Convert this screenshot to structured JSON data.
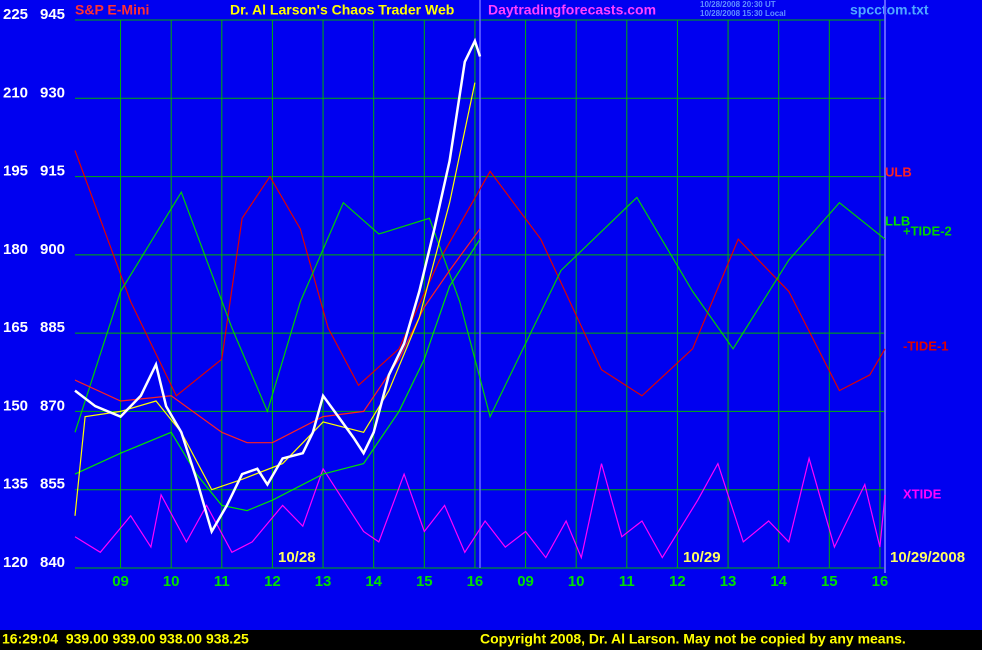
{
  "chart_data": {
    "type": "line",
    "title": "Dr. Al Larson's Chaos Trader Web",
    "instrument": "S&P E-Mini",
    "site": "Daytradingforecasts.com",
    "timestamps": [
      "10/28/2008 20:30 UT",
      "10/28/2008 15:30 Local"
    ],
    "file": "spcctom.txt",
    "dates": [
      "10/28",
      "10/29",
      "10/29/2008"
    ],
    "status": "16:29:04  939.00 939.00 938.00 938.25",
    "copyright": "Copyright 2008, Dr. Al Larson. May not be copied by any means.",
    "grid": true,
    "xlim": [
      0.1,
      16.1
    ],
    "xticks": [
      {
        "value": 1,
        "label": "09"
      },
      {
        "value": 2,
        "label": "10"
      },
      {
        "value": 3,
        "label": "11"
      },
      {
        "value": 4,
        "label": "12"
      },
      {
        "value": 5,
        "label": "13"
      },
      {
        "value": 6,
        "label": "14"
      },
      {
        "value": 7,
        "label": "15"
      },
      {
        "value": 8,
        "label": "16"
      },
      {
        "value": 9,
        "label": "09"
      },
      {
        "value": 10,
        "label": "10"
      },
      {
        "value": 11,
        "label": "11"
      },
      {
        "value": 12,
        "label": "12"
      },
      {
        "value": 13,
        "label": "13"
      },
      {
        "value": 14,
        "label": "14"
      },
      {
        "value": 15,
        "label": "15"
      },
      {
        "value": 16,
        "label": "16"
      }
    ],
    "ylim": [
      840,
      945
    ],
    "yticks": [
      840,
      855,
      870,
      885,
      900,
      915,
      930,
      945
    ],
    "y2lim": [
      120,
      225
    ],
    "y2ticks": [
      120,
      135,
      150,
      165,
      180,
      195,
      210,
      225
    ],
    "series": [
      {
        "name": "-TIDE-1",
        "color": "#e00000",
        "x": [
          0.1,
          1.2,
          2.1,
          3.0,
          3.4,
          3.95,
          4.55,
          5.1,
          5.7,
          6.5,
          7.3,
          8.3,
          9.3,
          10.5,
          11.3,
          12.3,
          13.2,
          14.2,
          15.2,
          15.8,
          16.1
        ],
        "values": [
          920,
          891,
          873,
          880,
          907,
          915,
          905,
          886,
          875,
          882,
          899,
          916,
          903,
          878,
          873,
          882,
          903,
          893,
          874,
          877,
          882
        ]
      },
      {
        "name": "+TIDE-2",
        "color": "#00d000",
        "x": [
          0.1,
          1.0,
          2.2,
          3.2,
          3.9,
          4.55,
          5.4,
          6.1,
          7.1,
          7.7,
          8.3,
          9.7,
          11.2,
          12.3,
          13.1,
          14.2,
          15.2,
          16.1
        ],
        "values": [
          866,
          893,
          912,
          886,
          870,
          891,
          910,
          904,
          907,
          891,
          869,
          897,
          911,
          893,
          882,
          899,
          910,
          903
        ]
      },
      {
        "name": "XTIDE",
        "color": "#ff00ff",
        "x": [
          0.1,
          0.6,
          1.2,
          1.6,
          1.8,
          2.3,
          2.7,
          3.2,
          3.6,
          4.2,
          4.6,
          5.0,
          5.4,
          5.8,
          6.1,
          6.6,
          7.0,
          7.4,
          7.8,
          8.2,
          8.6,
          9.0,
          9.4,
          9.8,
          10.1,
          10.5,
          10.9,
          11.3,
          11.7,
          12.4,
          12.8,
          13.3,
          13.8,
          14.2,
          14.6,
          15.1,
          15.7,
          16.0,
          16.1
        ],
        "values": [
          846,
          843,
          850,
          844,
          854,
          845,
          852,
          843,
          845,
          852,
          848,
          859,
          853,
          847,
          845,
          858,
          847,
          852,
          843,
          849,
          844,
          847,
          842,
          849,
          842,
          860,
          846,
          849,
          842,
          853,
          860,
          845,
          849,
          845,
          861,
          844,
          856,
          844,
          854
        ]
      },
      {
        "name": "ULB",
        "color": "#ff2020",
        "x": [
          0.1,
          1.0,
          2.0,
          3.0,
          3.5,
          4.0,
          5.0,
          5.8,
          6.5,
          7.0,
          7.5,
          8.1
        ],
        "values": [
          876,
          872,
          873,
          866,
          864,
          864,
          869,
          870,
          880,
          890,
          897,
          905
        ]
      },
      {
        "name": "LLB",
        "color": "#00e000",
        "x": [
          0.1,
          1.0,
          2.0,
          2.5,
          3.0,
          3.5,
          4.0,
          5.0,
          5.8,
          6.5,
          7.0,
          7.5,
          8.1
        ],
        "values": [
          858,
          862,
          866,
          858,
          852,
          851,
          853,
          858,
          860,
          870,
          880,
          894,
          903
        ]
      },
      {
        "color": "#ffff00",
        "x": [
          0.1,
          0.3,
          1.0,
          1.7,
          2.2,
          2.8,
          3.4,
          4.2,
          5.0,
          5.8,
          6.3,
          6.9,
          7.5,
          8.0
        ],
        "values": [
          850,
          869,
          870,
          872,
          866,
          855,
          857,
          860,
          868,
          866,
          874,
          888,
          910,
          933
        ]
      },
      {
        "color": "#ffffff",
        "x": [
          0.1,
          0.5,
          1.0,
          1.4,
          1.7,
          1.9,
          2.2,
          2.5,
          2.8,
          3.1,
          3.4,
          3.7,
          3.9,
          4.2,
          4.6,
          4.8,
          5.0,
          5.3,
          5.6,
          5.8,
          6.0,
          6.3,
          6.6,
          6.9,
          7.2,
          7.5,
          7.8,
          8.0,
          8.1
        ],
        "values": [
          874,
          871,
          869,
          873,
          879,
          871,
          866,
          857,
          847,
          852,
          858,
          859,
          856,
          861,
          862,
          866,
          873,
          869,
          865,
          862,
          866,
          877,
          883,
          893,
          905,
          918,
          937,
          941,
          938
        ]
      }
    ]
  }
}
